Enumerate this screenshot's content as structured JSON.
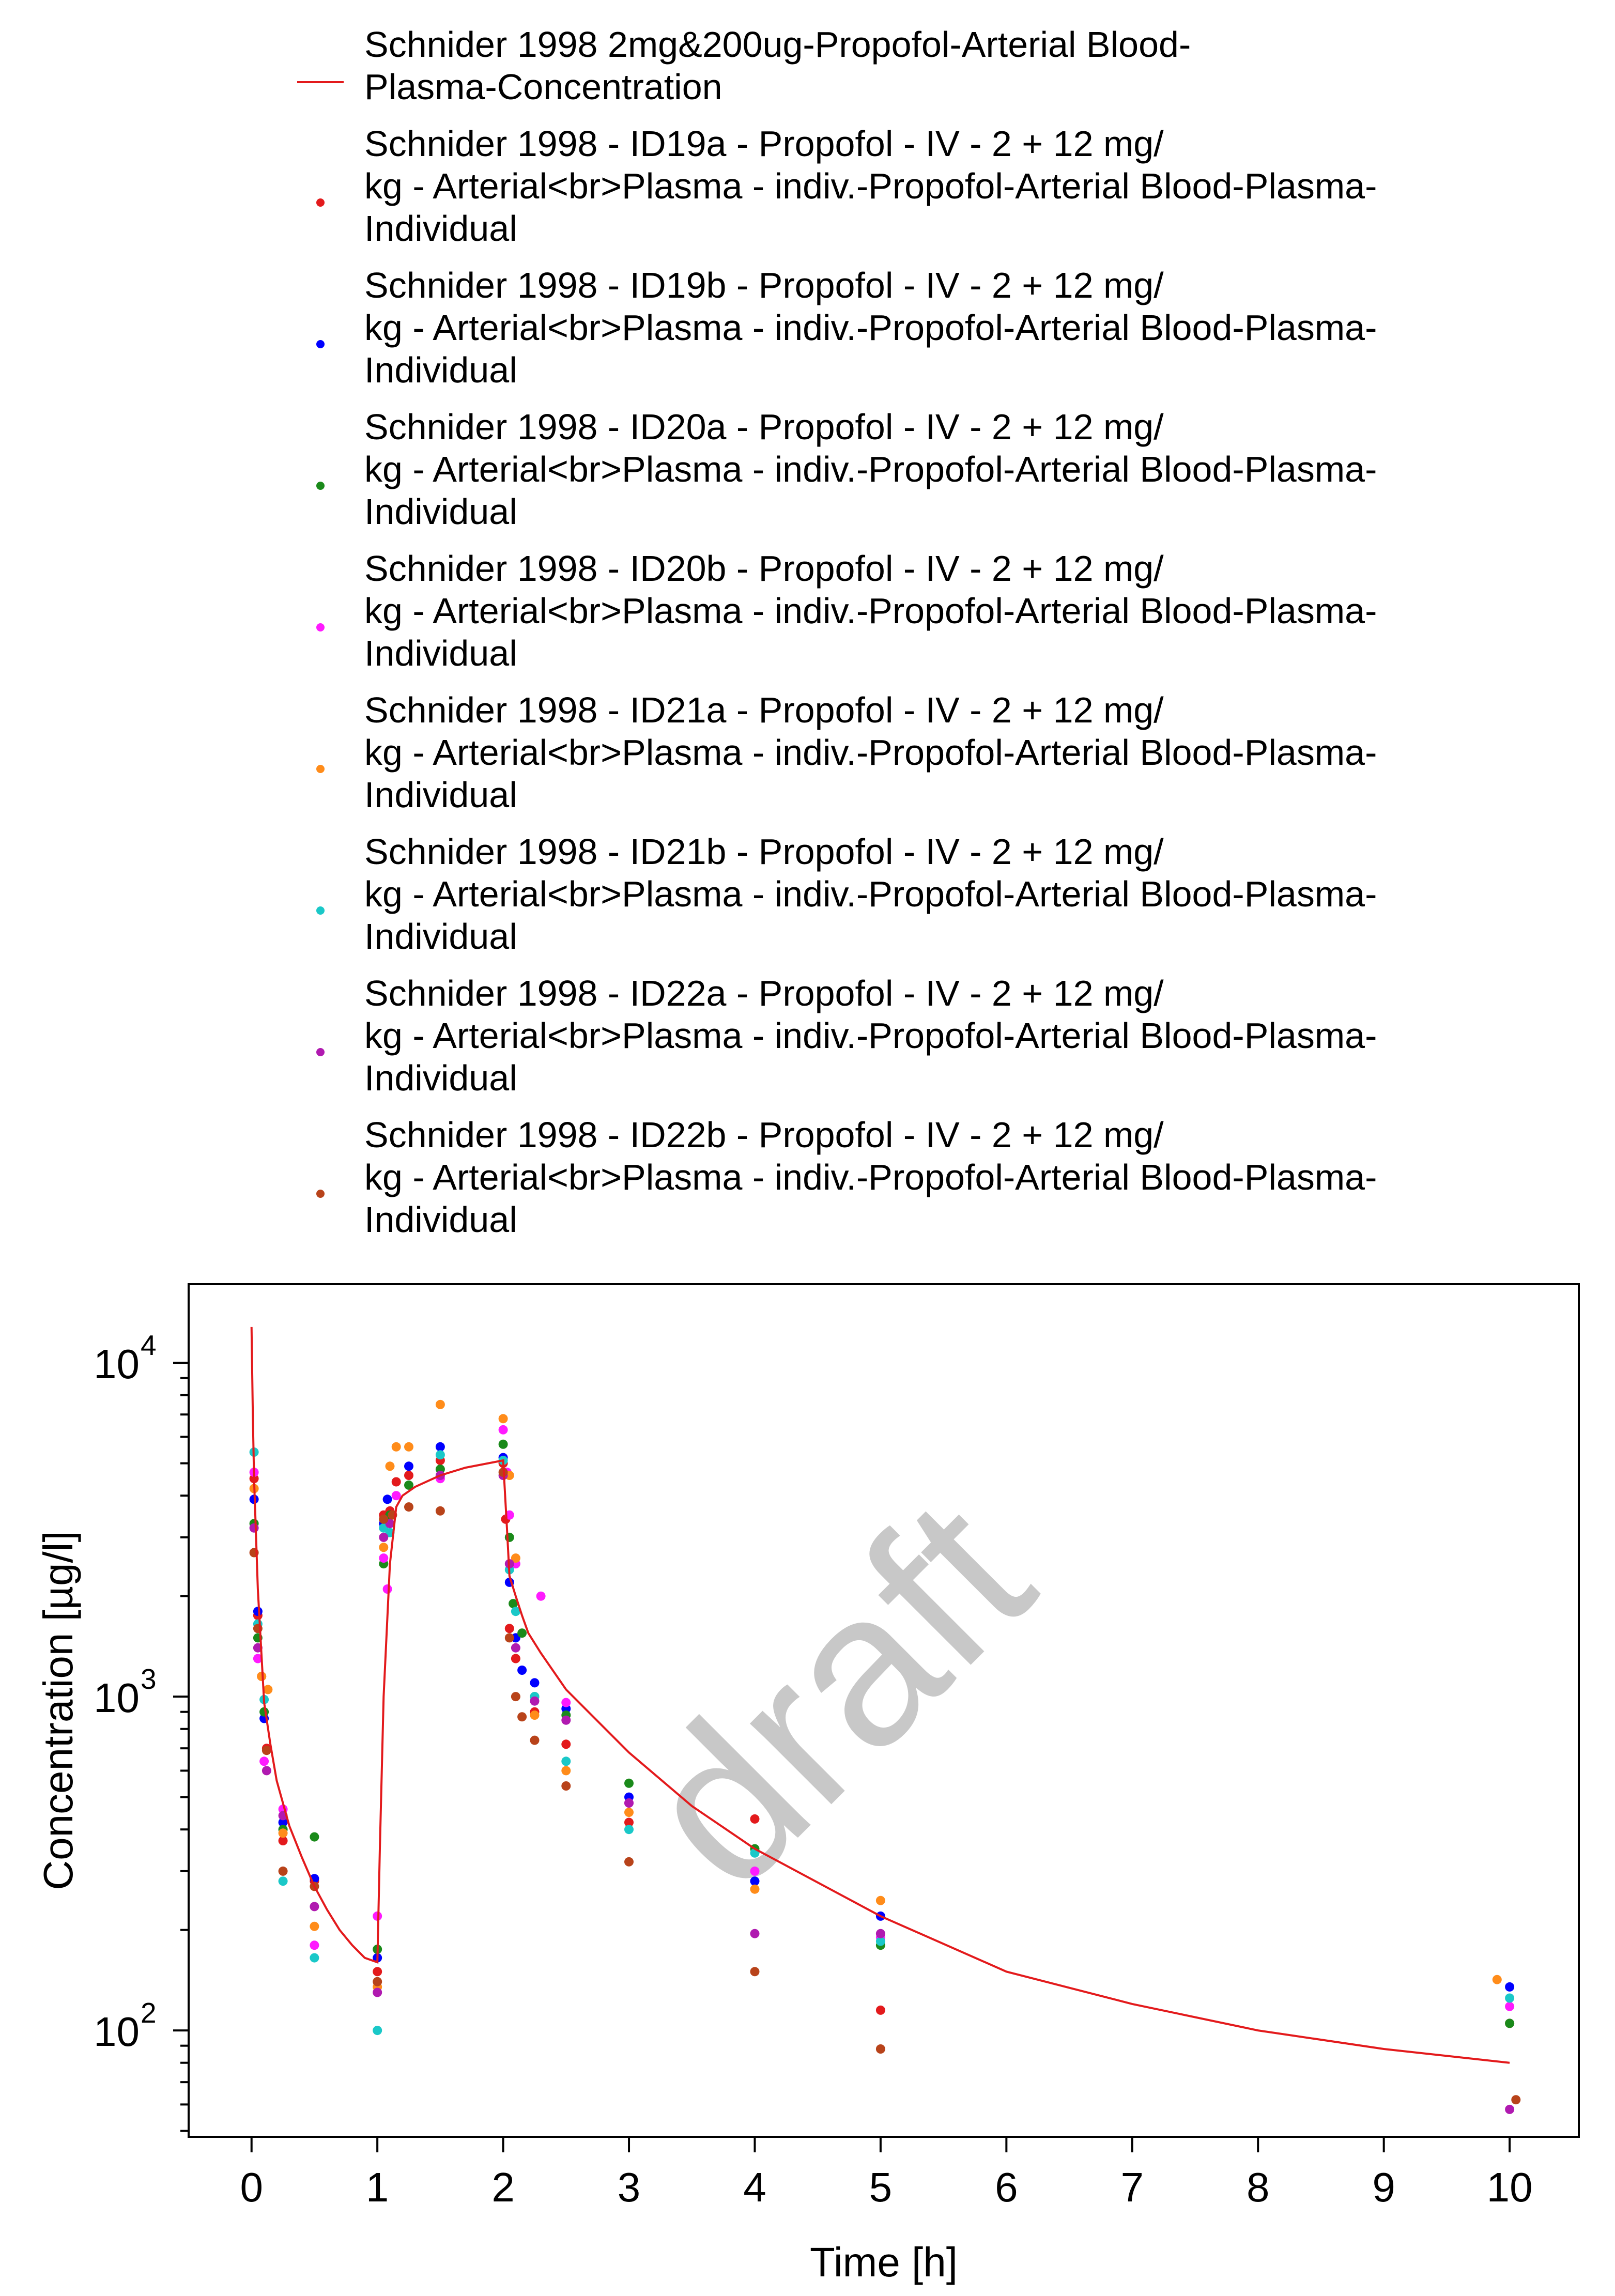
{
  "chart_data": {
    "type": "scatter",
    "xlabel": "Time [h]",
    "ylabel": "Concentration [µg/l]",
    "x_scale": "linear",
    "y_scale": "log",
    "xlim": [
      -0.5,
      10.55
    ],
    "ylim": [
      48,
      17200
    ],
    "x_ticks": [
      0,
      1,
      2,
      3,
      4,
      5,
      6,
      7,
      8,
      9,
      10
    ],
    "x_tick_labels": [
      "0",
      "1",
      "2",
      "3",
      "4",
      "5",
      "6",
      "7",
      "8",
      "9",
      "10"
    ],
    "y_ticks": [
      100,
      1000,
      10000
    ],
    "y_tick_labels": [
      {
        "base": "10",
        "exp": "2"
      },
      {
        "base": "10",
        "exp": "3"
      },
      {
        "base": "10",
        "exp": "4"
      }
    ],
    "grid": false,
    "legend_position": "top",
    "watermark": "draft",
    "line_series": {
      "name": "Schnider 1998 2mg&200ug-Propofol-Arterial Blood-Plasma-Concentration",
      "legend_lines": [
        "Schnider 1998 2mg&200ug-Propofol-Arterial Blood-",
        "Plasma-Concentration"
      ],
      "color": "#e31a1c",
      "x": [
        0,
        0.01,
        0.02,
        0.05,
        0.1,
        0.15,
        0.2,
        0.3,
        0.4,
        0.5,
        0.6,
        0.7,
        0.8,
        0.9,
        1.0,
        1.02,
        1.05,
        1.1,
        1.15,
        1.2,
        1.3,
        1.5,
        1.7,
        2.0,
        2.03,
        2.05,
        2.1,
        2.15,
        2.2,
        2.3,
        2.5,
        3.0,
        3.5,
        4.0,
        5.0,
        6.0,
        7.0,
        8.0,
        9.0,
        10.0
      ],
      "y": [
        12800,
        7000,
        4500,
        2100,
        960,
        720,
        560,
        410,
        330,
        270,
        230,
        200,
        180,
        165,
        160,
        350,
        1000,
        2500,
        3700,
        4000,
        4250,
        4600,
        4850,
        5100,
        3200,
        2300,
        2000,
        1750,
        1550,
        1350,
        1050,
        680,
        470,
        350,
        220,
        150,
        120,
        100,
        88,
        80
      ]
    },
    "series": [
      {
        "name": "Schnider 1998 - ID19a - Propofol - IV - 2 + 12 mg/kg - Arterial<br>Plasma - indiv.-Propofol-Arterial Blood-Plasma-Individual",
        "legend_lines": [
          "Schnider 1998 - ID19a - Propofol - IV - 2 + 12 mg/",
          "kg - Arterial<br>Plasma - indiv.-Propofol-Arterial Blood-Plasma-",
          "Individual"
        ],
        "color": "#e31a1c",
        "points": [
          [
            0.02,
            4500
          ],
          [
            0.05,
            1750
          ],
          [
            0.08,
            1150
          ],
          [
            0.12,
            700
          ],
          [
            0.25,
            370
          ],
          [
            0.5,
            280
          ],
          [
            1.0,
            150
          ],
          [
            1.05,
            3500
          ],
          [
            1.1,
            3600
          ],
          [
            1.15,
            4400
          ],
          [
            1.25,
            4600
          ],
          [
            1.5,
            5100
          ],
          [
            2.0,
            5000
          ],
          [
            2.02,
            3400
          ],
          [
            2.05,
            1600
          ],
          [
            2.1,
            1300
          ],
          [
            2.25,
            900
          ],
          [
            2.5,
            720
          ],
          [
            3.0,
            420
          ],
          [
            4.0,
            430
          ],
          [
            5.0,
            115
          ],
          [
            10.0,
            105
          ]
        ]
      },
      {
        "name": "Schnider 1998 - ID19b - Propofol - IV - 2 + 12 mg/kg - Arterial<br>Plasma - indiv.-Propofol-Arterial Blood-Plasma-Individual",
        "legend_lines": [
          "Schnider 1998 - ID19b - Propofol - IV - 2 + 12 mg/",
          "kg - Arterial<br>Plasma - indiv.-Propofol-Arterial Blood-Plasma-",
          "Individual"
        ],
        "color": "#0000ff",
        "points": [
          [
            0.02,
            3900
          ],
          [
            0.05,
            1800
          ],
          [
            0.1,
            860
          ],
          [
            0.25,
            420
          ],
          [
            0.5,
            285
          ],
          [
            1.0,
            165
          ],
          [
            1.05,
            3300
          ],
          [
            1.08,
            3900
          ],
          [
            1.25,
            4900
          ],
          [
            1.5,
            5600
          ],
          [
            2.0,
            5200
          ],
          [
            2.05,
            2200
          ],
          [
            2.1,
            1500
          ],
          [
            2.15,
            1200
          ],
          [
            2.25,
            1100
          ],
          [
            2.5,
            920
          ],
          [
            3.0,
            500
          ],
          [
            4.0,
            280
          ],
          [
            5.0,
            220
          ],
          [
            10.0,
            135
          ]
        ]
      },
      {
        "name": "Schnider 1998 - ID20a - Propofol - IV - 2 + 12 mg/kg - Arterial<br>Plasma - indiv.-Propofol-Arterial Blood-Plasma-Individual",
        "legend_lines": [
          "Schnider 1998 - ID20a - Propofol - IV - 2 + 12 mg/",
          "kg - Arterial<br>Plasma - indiv.-Propofol-Arterial Blood-Plasma-",
          "Individual"
        ],
        "color": "#1a8a1a",
        "points": [
          [
            0.02,
            3300
          ],
          [
            0.05,
            1500
          ],
          [
            0.1,
            900
          ],
          [
            0.25,
            400
          ],
          [
            0.5,
            380
          ],
          [
            1.0,
            175
          ],
          [
            1.05,
            2500
          ],
          [
            1.1,
            3500
          ],
          [
            1.25,
            4300
          ],
          [
            1.5,
            4800
          ],
          [
            2.0,
            5700
          ],
          [
            2.05,
            3000
          ],
          [
            2.08,
            1900
          ],
          [
            2.15,
            1550
          ],
          [
            2.25,
            1000
          ],
          [
            2.5,
            880
          ],
          [
            3.0,
            550
          ],
          [
            4.0,
            350
          ],
          [
            5.0,
            180
          ],
          [
            10.0,
            105
          ]
        ]
      },
      {
        "name": "Schnider 1998 - ID20b - Propofol - IV - 2 + 12 mg/kg - Arterial<br>Plasma - indiv.-Propofol-Arterial Blood-Plasma-Individual",
        "legend_lines": [
          "Schnider 1998 - ID20b - Propofol - IV - 2 + 12 mg/",
          "kg - Arterial<br>Plasma - indiv.-Propofol-Arterial Blood-Plasma-",
          "Individual"
        ],
        "color": "#ff1aff",
        "points": [
          [
            0.02,
            4700
          ],
          [
            0.05,
            1300
          ],
          [
            0.1,
            640
          ],
          [
            0.25,
            460
          ],
          [
            0.5,
            180
          ],
          [
            1.0,
            220
          ],
          [
            1.05,
            2600
          ],
          [
            1.08,
            2100
          ],
          [
            1.15,
            4000
          ],
          [
            1.5,
            4500
          ],
          [
            2.0,
            6300
          ],
          [
            2.03,
            4700
          ],
          [
            2.05,
            3500
          ],
          [
            2.1,
            2500
          ],
          [
            2.3,
            2000
          ],
          [
            2.5,
            960
          ],
          [
            3.0,
            480
          ],
          [
            4.0,
            300
          ],
          [
            5.0,
            190
          ],
          [
            10.0,
            118
          ]
        ]
      },
      {
        "name": "Schnider 1998 - ID21a - Propofol - IV - 2 + 12 mg/kg - Arterial<br>Plasma - indiv.-Propofol-Arterial Blood-Plasma-Individual",
        "legend_lines": [
          "Schnider 1998 - ID21a - Propofol - IV - 2 + 12 mg/",
          "kg - Arterial<br>Plasma - indiv.-Propofol-Arterial Blood-Plasma-",
          "Individual"
        ],
        "color": "#ff8c1a",
        "points": [
          [
            0.02,
            4200
          ],
          [
            0.08,
            1150
          ],
          [
            0.13,
            1050
          ],
          [
            0.25,
            390
          ],
          [
            0.5,
            205
          ],
          [
            1.0,
            135
          ],
          [
            1.05,
            2800
          ],
          [
            1.1,
            4900
          ],
          [
            1.15,
            5600
          ],
          [
            1.25,
            5600
          ],
          [
            1.5,
            7500
          ],
          [
            2.0,
            6800
          ],
          [
            2.05,
            4600
          ],
          [
            2.1,
            2600
          ],
          [
            2.25,
            880
          ],
          [
            2.5,
            600
          ],
          [
            3.0,
            450
          ],
          [
            4.0,
            265
          ],
          [
            5.0,
            245
          ],
          [
            9.9,
            142
          ]
        ]
      },
      {
        "name": "Schnider 1998 - ID21b - Propofol - IV - 2 + 12 mg/kg - Arterial<br>Plasma - indiv.-Propofol-Arterial Blood-Plasma-Individual",
        "legend_lines": [
          "Schnider 1998 - ID21b - Propofol - IV - 2 + 12 mg/",
          "kg - Arterial<br>Plasma - indiv.-Propofol-Arterial Blood-Plasma-",
          "Individual"
        ],
        "color": "#1ac8c8",
        "points": [
          [
            0.02,
            5400
          ],
          [
            0.05,
            1650
          ],
          [
            0.1,
            980
          ],
          [
            0.25,
            280
          ],
          [
            0.5,
            165
          ],
          [
            1.0,
            100
          ],
          [
            1.05,
            3200
          ],
          [
            1.1,
            3100
          ],
          [
            1.5,
            5300
          ],
          [
            2.0,
            5100
          ],
          [
            2.05,
            2400
          ],
          [
            2.1,
            1800
          ],
          [
            2.25,
            1000
          ],
          [
            2.5,
            640
          ],
          [
            3.0,
            400
          ],
          [
            4.0,
            340
          ],
          [
            5.0,
            185
          ],
          [
            10.0,
            125
          ]
        ]
      },
      {
        "name": "Schnider 1998 - ID22a - Propofol - IV - 2 + 12 mg/kg - Arterial<br>Plasma - indiv.-Propofol-Arterial Blood-Plasma-Individual",
        "legend_lines": [
          "Schnider 1998 - ID22a - Propofol - IV - 2 + 12 mg/",
          "kg - Arterial<br>Plasma - indiv.-Propofol-Arterial Blood-Plasma-",
          "Individual"
        ],
        "color": "#b01ab0",
        "points": [
          [
            0.02,
            3200
          ],
          [
            0.05,
            1400
          ],
          [
            0.12,
            600
          ],
          [
            0.25,
            440
          ],
          [
            0.5,
            235
          ],
          [
            1.0,
            130
          ],
          [
            1.05,
            3000
          ],
          [
            1.1,
            3300
          ],
          [
            1.5,
            4600
          ],
          [
            2.0,
            4600
          ],
          [
            2.05,
            2500
          ],
          [
            2.1,
            1400
          ],
          [
            2.25,
            970
          ],
          [
            2.5,
            850
          ],
          [
            3.0,
            480
          ],
          [
            4.0,
            195
          ],
          [
            5.0,
            195
          ],
          [
            10.0,
            58
          ]
        ]
      },
      {
        "name": "Schnider 1998 - ID22b - Propofol - IV - 2 + 12 mg/kg - Arterial<br>Plasma - indiv.-Propofol-Arterial Blood-Plasma-Individual",
        "legend_lines": [
          "Schnider 1998 - ID22b - Propofol - IV - 2 + 12 mg/",
          "kg - Arterial<br>Plasma - indiv.-Propofol-Arterial Blood-Plasma-",
          "Individual"
        ],
        "color": "#b8431a",
        "points": [
          [
            0.02,
            2700
          ],
          [
            0.05,
            1600
          ],
          [
            0.12,
            690
          ],
          [
            0.25,
            300
          ],
          [
            0.5,
            270
          ],
          [
            1.0,
            140
          ],
          [
            1.05,
            3400
          ],
          [
            1.12,
            3500
          ],
          [
            1.25,
            3700
          ],
          [
            1.5,
            3600
          ],
          [
            2.0,
            4700
          ],
          [
            2.05,
            1500
          ],
          [
            2.1,
            1000
          ],
          [
            2.15,
            870
          ],
          [
            2.25,
            740
          ],
          [
            2.5,
            540
          ],
          [
            3.0,
            320
          ],
          [
            4.0,
            150
          ],
          [
            5.0,
            88
          ],
          [
            10.05,
            62
          ]
        ]
      }
    ]
  }
}
